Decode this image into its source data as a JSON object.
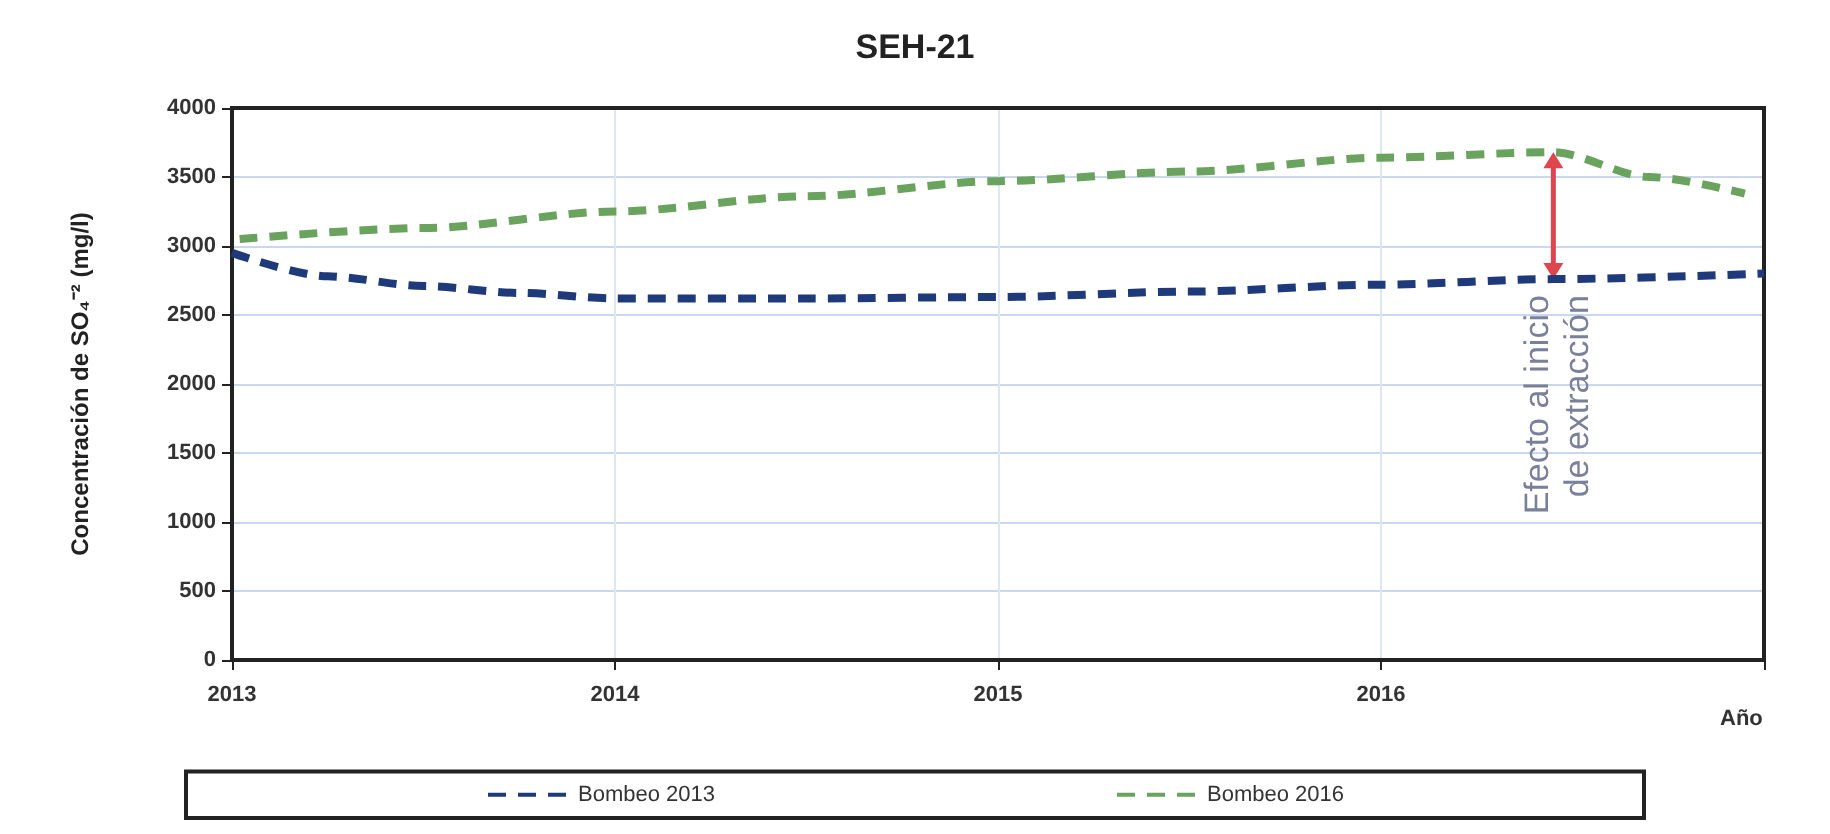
{
  "chart_data": {
    "type": "line",
    "title": "SEH-21",
    "xlabel": "Año",
    "ylabel": "Concentración de SO₄⁻² (mg/l)",
    "xlim": [
      2013,
      2017
    ],
    "xticks": [
      2013,
      2014,
      2015,
      2016,
      {
        "value": 2017,
        "label": null
      }
    ],
    "ylim": [
      0,
      4000
    ],
    "yticks": [
      0,
      500,
      1000,
      1500,
      2000,
      2500,
      3000,
      3500,
      4000
    ],
    "grid": true,
    "legend": "bottom",
    "marker": "none",
    "line_style": "dashed",
    "series": [
      {
        "name": "Bombeo 2013",
        "color": "#1f3a7a",
        "x": [
          2013,
          2013.25,
          2013.5,
          2013.75,
          2014,
          2014.5,
          2015,
          2015.5,
          2016,
          2016.45,
          2017
        ],
        "values": [
          2950,
          2780,
          2710,
          2660,
          2620,
          2620,
          2630,
          2670,
          2720,
          2760,
          2800
        ]
      },
      {
        "name": "Bombeo 2016",
        "color": "#6aa35e",
        "x": [
          2013.02,
          2013.5,
          2014,
          2014.5,
          2015,
          2015.5,
          2016,
          2016.45,
          2016.7,
          2016.95
        ],
        "values": [
          3050,
          3130,
          3250,
          3360,
          3470,
          3540,
          3640,
          3680,
          3500,
          3380
        ]
      }
    ],
    "annotations": [
      {
        "text": "Efecto al inicio de extracción",
        "x": 2016.45,
        "y": 3680
      }
    ]
  }
}
